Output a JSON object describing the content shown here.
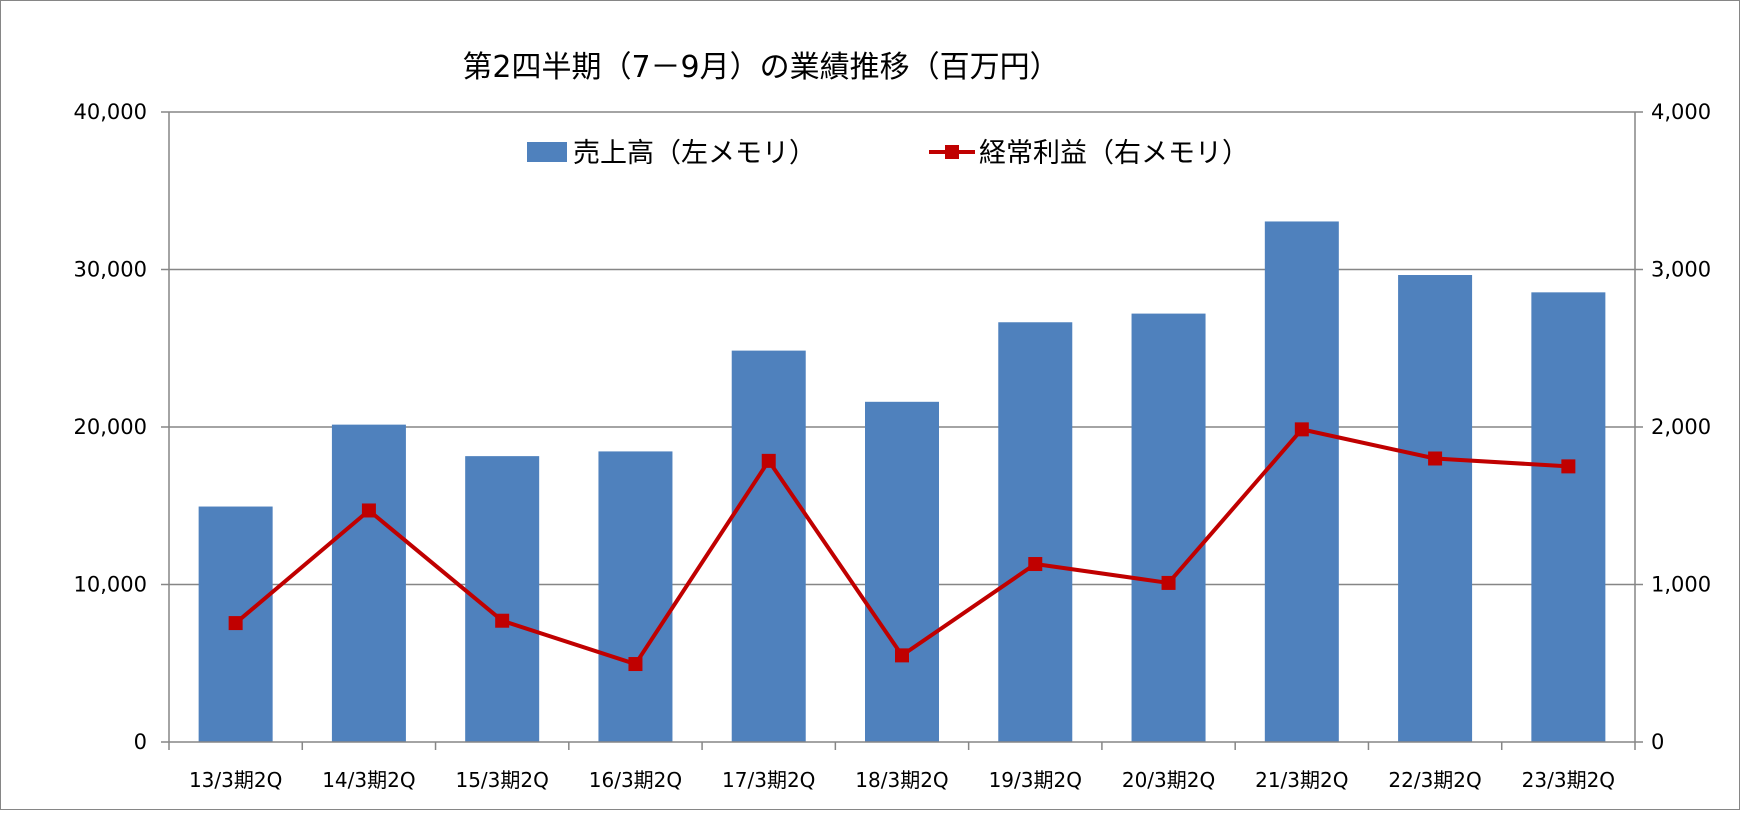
{
  "chart_data": {
    "type": "bar",
    "title": "第2四半期（7－9月）の業績推移（百万円）",
    "categories": [
      "13/3期2Q",
      "14/3期2Q",
      "15/3期2Q",
      "16/3期2Q",
      "17/3期2Q",
      "18/3期2Q",
      "19/3期2Q",
      "20/3期2Q",
      "21/3期2Q",
      "22/3期2Q",
      "23/3期2Q"
    ],
    "series": [
      {
        "name": "売上高（左メモリ）",
        "type": "bar",
        "axis": "left",
        "color": "#4f81bd",
        "values": [
          14950,
          20150,
          18150,
          18450,
          24850,
          21600,
          26650,
          27200,
          33050,
          29650,
          28550
        ]
      },
      {
        "name": "経常利益（右メモリ）",
        "type": "line",
        "axis": "right",
        "color": "#c00000",
        "values": [
          755,
          1470,
          770,
          495,
          1785,
          550,
          1130,
          1010,
          1985,
          1800,
          1750
        ]
      }
    ],
    "y_left": {
      "min": 0,
      "max": 40000,
      "ticks": [
        "0",
        "10,000",
        "20,000",
        "30,000",
        "40,000"
      ]
    },
    "y_right": {
      "min": 0,
      "max": 4000,
      "ticks": [
        "0",
        "1,000",
        "2,000",
        "3,000",
        "4,000"
      ]
    },
    "grid": true,
    "legend_position": "top"
  }
}
